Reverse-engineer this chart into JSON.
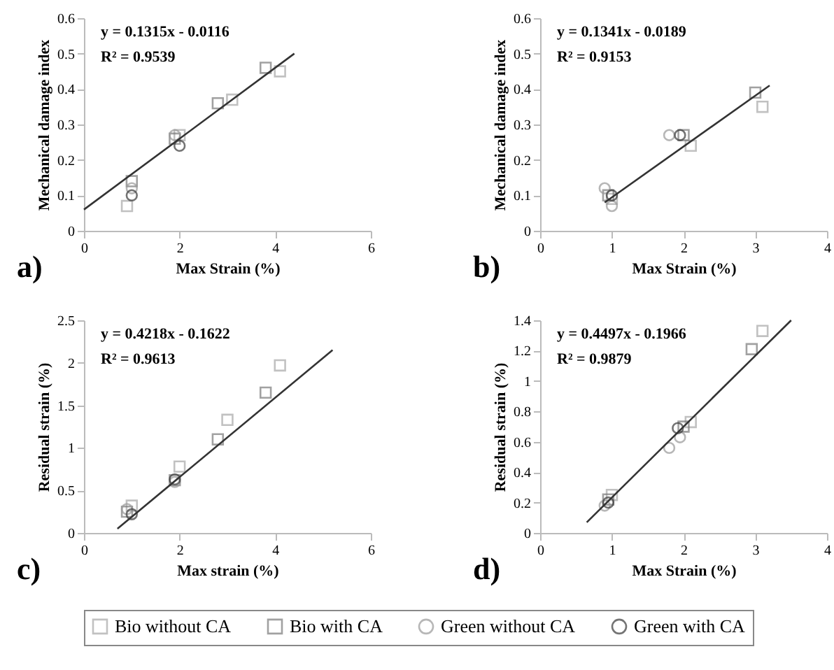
{
  "chart_data": [
    {
      "type": "scatter",
      "xlabel": "Max Strain (%)",
      "ylabel": "Mechanical damage index",
      "xlim": [
        0,
        6
      ],
      "xticks": [
        0,
        2,
        4,
        6
      ],
      "ylim": [
        0,
        0.6
      ],
      "yticks": [
        0,
        0.1,
        0.2,
        0.3,
        0.4,
        0.5,
        0.6
      ],
      "legend": "bottom",
      "annotations": [
        "y = 0.1315x - 0.0116",
        "R² = 0.9539",
        "a)"
      ],
      "series": [
        {
          "name": "Bio without CA",
          "color": "#a8a8a8",
          "marker": "square",
          "x": [
            4.1,
            3.1,
            2.0,
            0.9
          ],
          "values": [
            0.45,
            0.37,
            0.27,
            0.07
          ]
        },
        {
          "name": "Bio with CA",
          "color": "#7a7a7a",
          "marker": "square",
          "x": [
            3.8,
            2.8,
            1.9,
            1.0
          ],
          "values": [
            0.46,
            0.36,
            0.26,
            0.14
          ]
        },
        {
          "name": "Green without CA",
          "color": "#9a9a9a",
          "marker": "circle",
          "x": [
            1.0,
            1.9
          ],
          "values": [
            0.12,
            0.27
          ]
        },
        {
          "name": "Green with CA",
          "color": "#3a3a3a",
          "marker": "circle",
          "x": [
            1.0,
            2.0
          ],
          "values": [
            0.1,
            0.24
          ]
        },
        {
          "type": "line",
          "color": "#333333",
          "x": [
            0,
            4.4
          ],
          "values": [
            0.06,
            0.5
          ]
        }
      ]
    },
    {
      "type": "scatter",
      "xlabel": "Max Strain (%)",
      "ylabel": "Mechanical damage index",
      "xlim": [
        0,
        4
      ],
      "xticks": [
        0,
        1,
        2,
        3,
        4
      ],
      "ylim": [
        0,
        0.6
      ],
      "yticks": [
        0,
        0.1,
        0.2,
        0.3,
        0.4,
        0.5,
        0.6
      ],
      "legend": "bottom",
      "annotations": [
        "y = 0.1341x - 0.0189",
        "R² = 0.9153",
        "b)"
      ],
      "series": [
        {
          "name": "Bio without CA",
          "color": "#a8a8a8",
          "marker": "square",
          "x": [
            3.1,
            2.1,
            1.0
          ],
          "values": [
            0.35,
            0.24,
            0.09
          ]
        },
        {
          "name": "Bio with CA",
          "color": "#7a7a7a",
          "marker": "square",
          "x": [
            3.0,
            2.0,
            0.95
          ],
          "values": [
            0.39,
            0.27,
            0.1
          ]
        },
        {
          "name": "Green without CA",
          "color": "#9a9a9a",
          "marker": "circle",
          "x": [
            1.8,
            0.9,
            1.0
          ],
          "values": [
            0.27,
            0.12,
            0.07
          ]
        },
        {
          "name": "Green with CA",
          "color": "#3a3a3a",
          "marker": "circle",
          "x": [
            1.95,
            1.0
          ],
          "values": [
            0.27,
            0.1
          ]
        },
        {
          "type": "line",
          "color": "#333333",
          "x": [
            0.9,
            3.2
          ],
          "values": [
            0.08,
            0.41
          ]
        }
      ]
    },
    {
      "type": "scatter",
      "xlabel": "Max strain (%)",
      "ylabel": "Residual strain (%)",
      "xlim": [
        0,
        6
      ],
      "xticks": [
        0,
        2,
        4,
        6
      ],
      "ylim": [
        0,
        2.5
      ],
      "yticks": [
        0,
        0.5,
        1,
        1.5,
        2,
        2.5
      ],
      "legend": "bottom",
      "annotations": [
        "y = 0.4218x - 0.1622",
        "R² = 0.9613",
        "c)"
      ],
      "series": [
        {
          "name": "Bio without CA",
          "color": "#a8a8a8",
          "marker": "square",
          "x": [
            4.1,
            3.0,
            2.0,
            1.0
          ],
          "values": [
            1.97,
            1.33,
            0.78,
            0.32
          ]
        },
        {
          "name": "Bio with CA",
          "color": "#7a7a7a",
          "marker": "square",
          "x": [
            3.8,
            2.8,
            1.9,
            0.9
          ],
          "values": [
            1.65,
            1.1,
            0.62,
            0.25
          ]
        },
        {
          "name": "Green without CA",
          "color": "#9a9a9a",
          "marker": "circle",
          "x": [
            0.9,
            1.9
          ],
          "values": [
            0.28,
            0.6
          ]
        },
        {
          "name": "Green with CA",
          "color": "#3a3a3a",
          "marker": "circle",
          "x": [
            1.0,
            1.9
          ],
          "values": [
            0.22,
            0.63
          ]
        },
        {
          "type": "line",
          "color": "#333333",
          "x": [
            0.7,
            5.2
          ],
          "values": [
            0.05,
            2.15
          ]
        }
      ]
    },
    {
      "type": "scatter",
      "xlabel": "Max Strain (%)",
      "ylabel": "Residual strain (%)",
      "xlim": [
        0,
        4
      ],
      "xticks": [
        0,
        1,
        2,
        3,
        4
      ],
      "ylim": [
        0,
        1.4
      ],
      "yticks": [
        0,
        0.2,
        0.4,
        0.6,
        0.8,
        1,
        1.2,
        1.4
      ],
      "legend": "bottom",
      "annotations": [
        "y = 0.4497x - 0.1966",
        "R² = 0.9879",
        "d)"
      ],
      "series": [
        {
          "name": "Bio without CA",
          "color": "#a8a8a8",
          "marker": "square",
          "x": [
            3.1,
            2.1,
            1.0
          ],
          "values": [
            1.33,
            0.73,
            0.25
          ]
        },
        {
          "name": "Bio with CA",
          "color": "#7a7a7a",
          "marker": "square",
          "x": [
            2.95,
            2.0,
            0.95
          ],
          "values": [
            1.21,
            0.7,
            0.22
          ]
        },
        {
          "name": "Green without CA",
          "color": "#9a9a9a",
          "marker": "circle",
          "x": [
            1.8,
            1.95,
            0.9
          ],
          "values": [
            0.56,
            0.63,
            0.18
          ]
        },
        {
          "name": "Green with CA",
          "color": "#3a3a3a",
          "marker": "circle",
          "x": [
            1.92,
            0.95
          ],
          "values": [
            0.69,
            0.2
          ]
        },
        {
          "type": "line",
          "color": "#333333",
          "x": [
            0.65,
            3.5
          ],
          "values": [
            0.07,
            1.4
          ]
        }
      ]
    }
  ]
}
